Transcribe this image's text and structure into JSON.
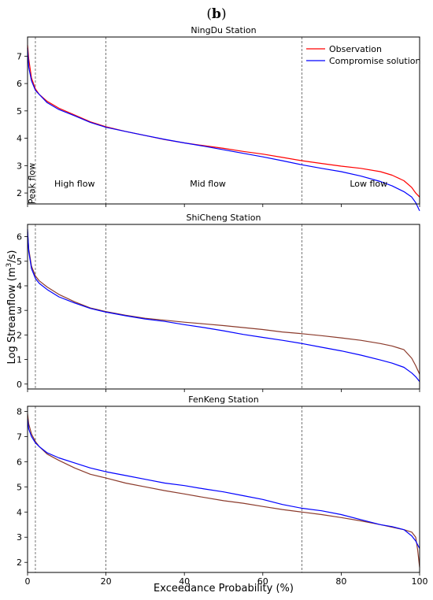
{
  "figure_label": {
    "pre": "(",
    "letter": "b",
    "post": ")"
  },
  "chart_data": {
    "type": "line",
    "xlabel": "Exceedance Probability (%)",
    "ylabel": {
      "main": "Log Streamflow (m",
      "sup": "3",
      "tail": "/s)"
    },
    "xlim": [
      0,
      100
    ],
    "x_ticks": [
      0,
      20,
      40,
      60,
      80,
      100
    ],
    "legend": {
      "placement": "top-right",
      "entries": [
        "Observation",
        "Compromise solution"
      ]
    },
    "series_colors": {
      "observation": "#ff0000",
      "compromise": "#0000ff",
      "overlap": "#8b3a2b"
    },
    "vlines": [
      2,
      20,
      70
    ],
    "regions": [
      {
        "label": "Peak flow",
        "x": 1,
        "vertical": true
      },
      {
        "label": "High flow",
        "x": 12,
        "vertical": false
      },
      {
        "label": "Mid flow",
        "x": 46,
        "vertical": false
      },
      {
        "label": "Low flow",
        "x": 87,
        "vertical": false
      }
    ],
    "panels": [
      {
        "title": "NingDu Station",
        "ylim": [
          1.6,
          7.7
        ],
        "y_ticks": [
          2,
          3,
          4,
          5,
          6,
          7
        ],
        "show_legend": true,
        "show_regions": true,
        "series": [
          {
            "name": "Observation",
            "key": "observation",
            "x": [
              0,
              0.3,
              1,
              2,
              3,
              5,
              8,
              12,
              16,
              20,
              25,
              30,
              35,
              40,
              45,
              50,
              55,
              60,
              65,
              70,
              75,
              80,
              85,
              90,
              93,
              96,
              98,
              99,
              100
            ],
            "y": [
              7.4,
              6.9,
              6.2,
              5.8,
              5.6,
              5.35,
              5.1,
              4.85,
              4.6,
              4.42,
              4.25,
              4.1,
              3.95,
              3.83,
              3.73,
              3.63,
              3.52,
              3.42,
              3.3,
              3.18,
              3.08,
              2.98,
              2.9,
              2.78,
              2.65,
              2.45,
              2.2,
              2.0,
              1.85
            ]
          },
          {
            "name": "Compromise solution",
            "key": "compromise",
            "x": [
              0,
              0.3,
              1,
              2,
              3,
              5,
              8,
              12,
              16,
              20,
              25,
              30,
              35,
              40,
              45,
              50,
              55,
              60,
              65,
              70,
              75,
              80,
              85,
              90,
              93,
              96,
              98,
              99,
              100
            ],
            "y": [
              7.3,
              6.6,
              6.1,
              5.75,
              5.6,
              5.3,
              5.05,
              4.82,
              4.58,
              4.4,
              4.25,
              4.1,
              3.96,
              3.83,
              3.71,
              3.58,
              3.45,
              3.32,
              3.18,
              3.03,
              2.9,
              2.78,
              2.62,
              2.42,
              2.26,
              2.05,
              1.85,
              1.65,
              1.35
            ]
          }
        ]
      },
      {
        "title": "ShiCheng Station",
        "ylim": [
          -0.2,
          6.5
        ],
        "y_ticks": [
          0,
          1,
          2,
          3,
          4,
          5,
          6
        ],
        "show_legend": false,
        "show_regions": false,
        "series": [
          {
            "name": "Observation",
            "key": "overlap",
            "x": [
              0,
              0.3,
              1,
              2,
              3,
              5,
              8,
              12,
              16,
              20,
              25,
              30,
              35,
              40,
              45,
              50,
              55,
              60,
              65,
              70,
              75,
              80,
              85,
              90,
              93,
              96,
              98,
              99,
              100
            ],
            "y": [
              6.2,
              5.5,
              4.8,
              4.4,
              4.2,
              3.95,
              3.65,
              3.35,
              3.1,
              2.95,
              2.8,
              2.68,
              2.6,
              2.52,
              2.45,
              2.38,
              2.3,
              2.22,
              2.12,
              2.05,
              1.97,
              1.88,
              1.78,
              1.65,
              1.55,
              1.4,
              1.05,
              0.75,
              0.4
            ]
          },
          {
            "name": "Compromise solution",
            "key": "compromise",
            "x": [
              0,
              0.3,
              1,
              2,
              3,
              5,
              8,
              12,
              16,
              20,
              25,
              30,
              35,
              40,
              45,
              50,
              55,
              60,
              65,
              70,
              75,
              80,
              85,
              90,
              93,
              96,
              98,
              99,
              100
            ],
            "y": [
              6.3,
              5.4,
              4.7,
              4.3,
              4.1,
              3.85,
              3.55,
              3.3,
              3.08,
              2.93,
              2.78,
              2.65,
              2.55,
              2.42,
              2.3,
              2.17,
              2.02,
              1.9,
              1.78,
              1.65,
              1.5,
              1.35,
              1.18,
              0.98,
              0.85,
              0.68,
              0.45,
              0.3,
              0.1
            ]
          }
        ]
      },
      {
        "title": "FenKeng Station",
        "ylim": [
          1.6,
          8.2
        ],
        "y_ticks": [
          2,
          3,
          4,
          5,
          6,
          7,
          8
        ],
        "show_legend": false,
        "show_regions": false,
        "series": [
          {
            "name": "Observation",
            "key": "overlap",
            "x": [
              0,
              0.3,
              1,
              2,
              3,
              5,
              8,
              12,
              16,
              20,
              25,
              30,
              35,
              40,
              45,
              50,
              55,
              60,
              65,
              70,
              75,
              80,
              85,
              90,
              93,
              96,
              98,
              99,
              99.5,
              100
            ],
            "y": [
              7.9,
              7.5,
              7.1,
              6.8,
              6.6,
              6.3,
              6.05,
              5.75,
              5.5,
              5.35,
              5.15,
              5.0,
              4.85,
              4.72,
              4.58,
              4.45,
              4.35,
              4.22,
              4.1,
              4.0,
              3.9,
              3.78,
              3.65,
              3.5,
              3.4,
              3.3,
              3.2,
              3.0,
              2.5,
              1.8
            ]
          },
          {
            "name": "Compromise solution",
            "key": "compromise",
            "x": [
              0,
              0.3,
              1,
              2,
              3,
              5,
              8,
              12,
              16,
              20,
              25,
              30,
              35,
              40,
              45,
              50,
              55,
              60,
              65,
              70,
              75,
              80,
              85,
              90,
              93,
              96,
              98,
              99,
              100
            ],
            "y": [
              7.7,
              7.3,
              7.0,
              6.75,
              6.6,
              6.35,
              6.15,
              5.95,
              5.75,
              5.6,
              5.45,
              5.3,
              5.15,
              5.05,
              4.92,
              4.8,
              4.65,
              4.5,
              4.3,
              4.15,
              4.05,
              3.9,
              3.7,
              3.5,
              3.42,
              3.3,
              3.05,
              2.85,
              2.55
            ]
          }
        ]
      }
    ]
  }
}
